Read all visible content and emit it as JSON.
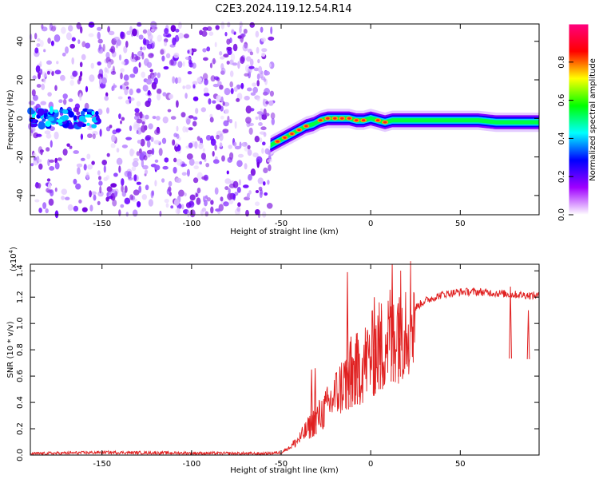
{
  "title": "C2E3.2024.119.12.54.R14",
  "chart_data": [
    {
      "type": "heatmap",
      "xlabel": "Height of straight line (km)",
      "ylabel": "Frequency (Hz)",
      "xlim": [
        -190,
        94
      ],
      "ylim": [
        -50,
        49
      ],
      "xticks": [
        -150,
        -100,
        -50,
        0,
        50
      ],
      "yticks": [
        -40,
        -20,
        0,
        20,
        40
      ],
      "colorbar": {
        "label": "Normalized spectral amplitude",
        "ticks": [
          "0.0",
          "0.2",
          "0.4",
          "0.6",
          "0.8"
        ],
        "range": [
          0,
          1
        ],
        "colors": [
          "#ffffff",
          "#a000ff",
          "#0000ff",
          "#00ffff",
          "#00ff00",
          "#ffff00",
          "#ff0000",
          "#ff0080"
        ]
      },
      "ridge": {
        "x": [
          -56,
          -52,
          -48,
          -44,
          -40,
          -36,
          -32,
          -28,
          -24,
          -20,
          -16,
          -12,
          -8,
          -4,
          0,
          4,
          8,
          12,
          20,
          30,
          40,
          50,
          60,
          70,
          80,
          94
        ],
        "y": [
          -14,
          -12,
          -10,
          -8,
          -6,
          -4,
          -3,
          -1,
          0,
          0,
          0,
          0,
          -1,
          -1,
          0,
          -1,
          -2,
          -1,
          -1,
          -1,
          -1,
          -1,
          -1,
          -2,
          -2,
          -2
        ]
      },
      "low_cluster": {
        "x_range": [
          -190,
          -152
        ],
        "frequency": 0
      },
      "noise_region_x": [
        -190,
        -54
      ]
    },
    {
      "type": "line",
      "xlabel": "Height of straight line (km)",
      "ylabel": "SNR (10 * v/v)",
      "y_multiplier": "(x10",
      "y_multiplier_exp": "4",
      "xlim": [
        -190,
        94
      ],
      "ylim": [
        0,
        1.45
      ],
      "xticks": [
        -150,
        -100,
        -50,
        0,
        50
      ],
      "yticks": [
        "0.0",
        "0.2",
        "0.4",
        "0.6",
        "0.8",
        "1.0",
        "1.2",
        "1.4"
      ],
      "color": "#e02020",
      "envelope": {
        "x": [
          -190,
          -150,
          -60,
          -50,
          -45,
          -40,
          -35,
          -30,
          -25,
          -20,
          -15,
          -10,
          -5,
          0,
          5,
          10,
          15,
          20,
          25,
          30,
          40,
          50,
          60,
          70,
          80,
          94
        ],
        "y": [
          0.01,
          0.02,
          0.01,
          0.02,
          0.06,
          0.12,
          0.2,
          0.28,
          0.35,
          0.45,
          0.55,
          0.62,
          0.68,
          0.75,
          0.82,
          0.9,
          0.98,
          1.05,
          1.12,
          1.17,
          1.22,
          1.24,
          1.24,
          1.23,
          1.22,
          1.21
        ]
      },
      "spikes": [
        {
          "x": -33,
          "y": 0.65
        },
        {
          "x": -31,
          "y": 0.66
        },
        {
          "x": -13,
          "y": 1.39
        },
        {
          "x": -11,
          "y": 0.9
        },
        {
          "x": -8,
          "y": 0.88
        },
        {
          "x": 2,
          "y": 1.2
        },
        {
          "x": 6,
          "y": 1.1
        },
        {
          "x": 12,
          "y": 1.45
        },
        {
          "x": 16,
          "y": 1.2
        },
        {
          "x": 78,
          "y": 1.28
        },
        {
          "x": 88,
          "y": 1.1
        }
      ]
    }
  ]
}
